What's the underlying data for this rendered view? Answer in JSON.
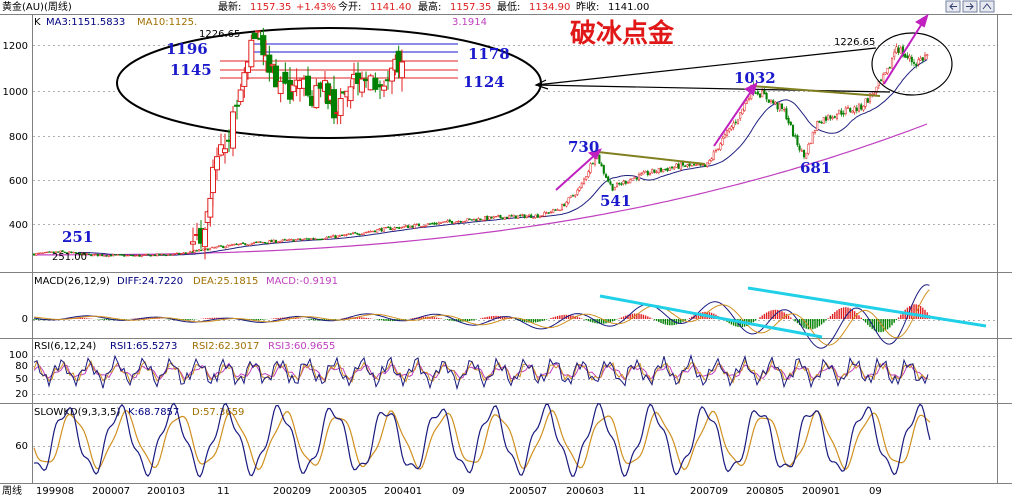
{
  "header": {
    "instrument": "黄金(AU)(周线)",
    "latest_label": "最新:",
    "latest": "1157.35",
    "change": "+1.43%",
    "open_label": "今开:",
    "open": "1141.40",
    "high_label": "最高:",
    "high": "1157.35",
    "low_label": "最低:",
    "low": "1134.90",
    "prevclose_label": "昨收:",
    "prevclose": "1141.00"
  },
  "main_panel": {
    "k_label": "K",
    "ma3_label": "MA3:1151.5833",
    "ma10_label": "MA10:1125.",
    "extra_value": "3.1914",
    "headline": "破冰点金",
    "y_ticks": [
      "1200",
      "1000",
      "800",
      "600",
      "400"
    ],
    "annotations": {
      "a251": "251",
      "a251_low": "251.00",
      "a730": "730",
      "a541": "541",
      "a1032": "1032",
      "a681": "681",
      "a1226_right": "1226.65",
      "inset_1226": "1226.65",
      "inset_1196": "1196",
      "inset_1145": "1145",
      "inset_1178": "1178",
      "inset_1124": "1124"
    }
  },
  "macd_panel": {
    "label": "MACD(26,12,9)",
    "diff": "DIFF:24.7220",
    "dea": "DEA:25.1815",
    "macd": "MACD:-0.9191",
    "y_ticks": [
      "0"
    ]
  },
  "rsi_panel": {
    "label": "RSI(6,12,24)",
    "rsi1": "RSI1:65.5273",
    "rsi2": "RSI2:62.3017",
    "rsi3": "RSI3:60.9655",
    "y_ticks": [
      "100",
      "80",
      "50",
      "20"
    ]
  },
  "kd_panel": {
    "label": "SLOWKD(9,3,3,5)",
    "k": "K:68.7857",
    "d": "D:57.3659",
    "y_ticks": [
      "60"
    ]
  },
  "x_axis": {
    "period_label": "周线",
    "ticks": [
      "199908",
      "200007",
      "200103",
      "11",
      "200209",
      "200305",
      "200401",
      "09",
      "200507",
      "200603",
      "11",
      "200709",
      "200805",
      "200901",
      "09"
    ]
  },
  "colors": {
    "up": "#e02020",
    "down": "#008000",
    "ma_short": "#000080",
    "ma_mid": "#202080",
    "ma_long": "#c040c0",
    "trend": "#808020",
    "arrow": "#c020c0",
    "cyan": "#20d0e8",
    "annot_blue": "#1a1acc",
    "headline": "#e01818",
    "grid": "#a0a0a0"
  },
  "chart_data": [
    {
      "type": "candlestick",
      "title": "黄金(AU)(周线)",
      "ylim": [
        270,
        1290
      ],
      "key_points": [
        {
          "label": "251",
          "x": "199908",
          "y": 251
        },
        {
          "label": "730",
          "x": "200605",
          "y": 730
        },
        {
          "label": "541",
          "x": "200606",
          "y": 541
        },
        {
          "label": "1032",
          "x": "200803",
          "y": 1032
        },
        {
          "label": "681",
          "x": "200810",
          "y": 681
        },
        {
          "label": "1226.65",
          "x": "200912",
          "y": 1226.65
        }
      ],
      "inset_levels": [
        1196,
        1178,
        1145,
        1124
      ],
      "last": {
        "open": 1141.4,
        "high": 1157.35,
        "low": 1134.9,
        "close": 1157.35,
        "prev_close": 1141.0
      },
      "ma3": 1151.5833
    },
    {
      "type": "line",
      "title": "MACD(26,12,9)",
      "series": [
        {
          "name": "DIFF",
          "last": 24.722
        },
        {
          "name": "DEA",
          "last": 25.1815
        },
        {
          "name": "MACD",
          "last": -0.9191
        }
      ]
    },
    {
      "type": "line",
      "title": "RSI(6,12,24)",
      "ylim": [
        0,
        100
      ],
      "series": [
        {
          "name": "RSI1",
          "last": 65.5273
        },
        {
          "name": "RSI2",
          "last": 62.3017
        },
        {
          "name": "RSI3",
          "last": 60.9655
        }
      ]
    },
    {
      "type": "line",
      "title": "SLOWKD(9,3,3,5)",
      "series": [
        {
          "name": "K",
          "last": 68.7857
        },
        {
          "name": "D",
          "last": 57.3659
        }
      ]
    }
  ]
}
